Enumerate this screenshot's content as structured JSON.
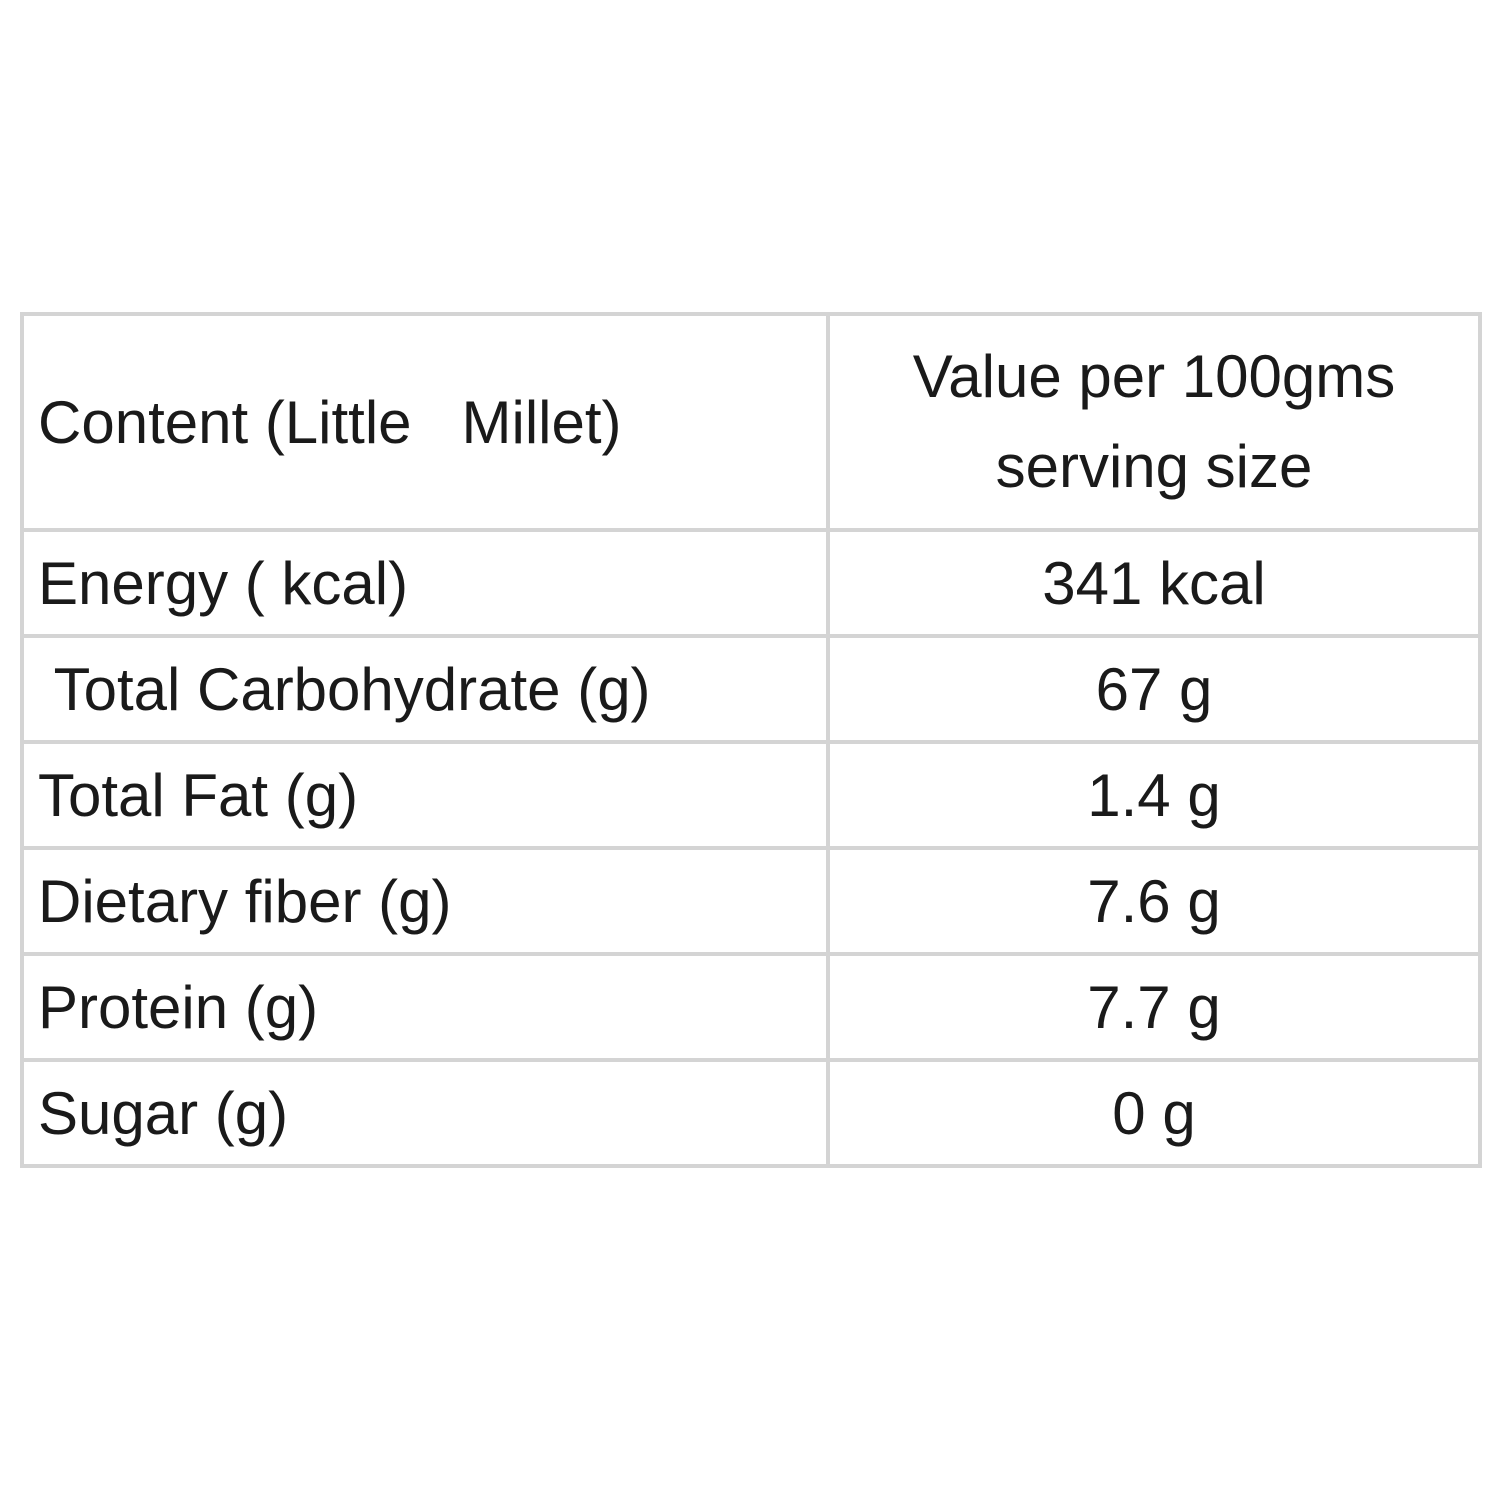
{
  "table": {
    "header": [
      "Content (Little   Millet)",
      "Value per 100gms serving size"
    ],
    "rows": [
      [
        "Energy ( kcal)",
        "341 kcal"
      ],
      [
        " Total Carbohydrate (g)",
        "67 g"
      ],
      [
        "Total Fat (g)",
        "1.4 g"
      ],
      [
        "Dietary fiber (g)",
        "7.6 g"
      ],
      [
        "Protein (g)",
        "7.7 g"
      ],
      [
        "Sugar (g)",
        "0 g"
      ]
    ]
  }
}
